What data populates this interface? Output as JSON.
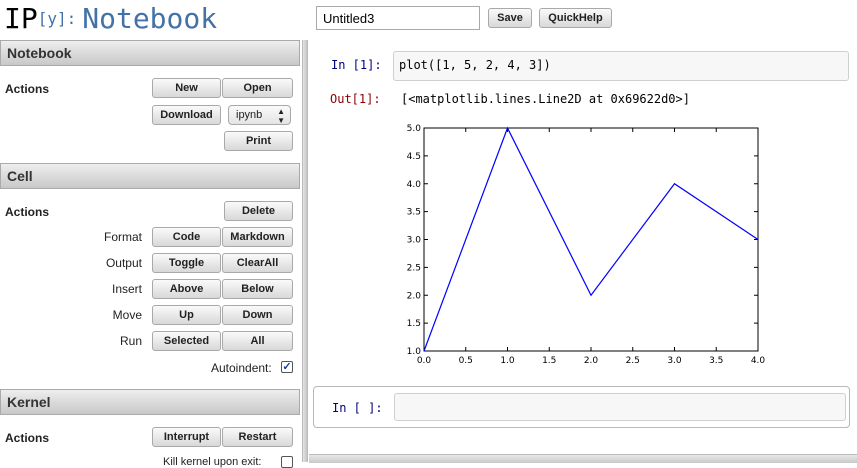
{
  "header": {
    "logo_ip": "IP",
    "logo_y": "[y]:",
    "logo_notebook": "Notebook",
    "notebook_name": "Untitled3",
    "save_label": "Save",
    "quickhelp_label": "QuickHelp"
  },
  "sidebar": {
    "notebook": {
      "title": "Notebook",
      "actions_label": "Actions",
      "new_label": "New",
      "open_label": "Open",
      "download_label": "Download",
      "format_value": "ipynb",
      "print_label": "Print"
    },
    "cell": {
      "title": "Cell",
      "actions_label": "Actions",
      "delete_label": "Delete",
      "format_label": "Format",
      "code_label": "Code",
      "markdown_label": "Markdown",
      "output_label": "Output",
      "toggle_label": "Toggle",
      "clearall_label": "ClearAll",
      "insert_label": "Insert",
      "above_label": "Above",
      "below_label": "Below",
      "move_label": "Move",
      "up_label": "Up",
      "down_label": "Down",
      "run_label": "Run",
      "selected_label": "Selected",
      "all_label": "All",
      "autoindent_label": "Autoindent:",
      "autoindent_checked": true
    },
    "kernel": {
      "title": "Kernel",
      "actions_label": "Actions",
      "interrupt_label": "Interrupt",
      "restart_label": "Restart",
      "kill_label": "Kill kernel upon exit:"
    }
  },
  "notebook": {
    "cells": [
      {
        "in_prompt": "In [1]:",
        "code": "plot([1, 5, 2, 4, 3])",
        "out_prompt": "Out[1]:",
        "output_text": "[<matplotlib.lines.Line2D at 0x69622d0>]"
      },
      {
        "in_prompt": "In [ ]:",
        "code": ""
      }
    ]
  },
  "chart_data": {
    "type": "line",
    "x": [
      0,
      1,
      2,
      3,
      4
    ],
    "series": [
      {
        "values": [
          1,
          5,
          2,
          4,
          3
        ],
        "color": "#0000ff"
      }
    ],
    "xlim": [
      0,
      4
    ],
    "ylim": [
      1,
      5
    ],
    "xticks": [
      "0.0",
      "0.5",
      "1.0",
      "1.5",
      "2.0",
      "2.5",
      "3.0",
      "3.5",
      "4.0"
    ],
    "yticks": [
      "1.0",
      "1.5",
      "2.0",
      "2.5",
      "3.0",
      "3.5",
      "4.0",
      "4.5",
      "5.0"
    ],
    "grid": false
  }
}
